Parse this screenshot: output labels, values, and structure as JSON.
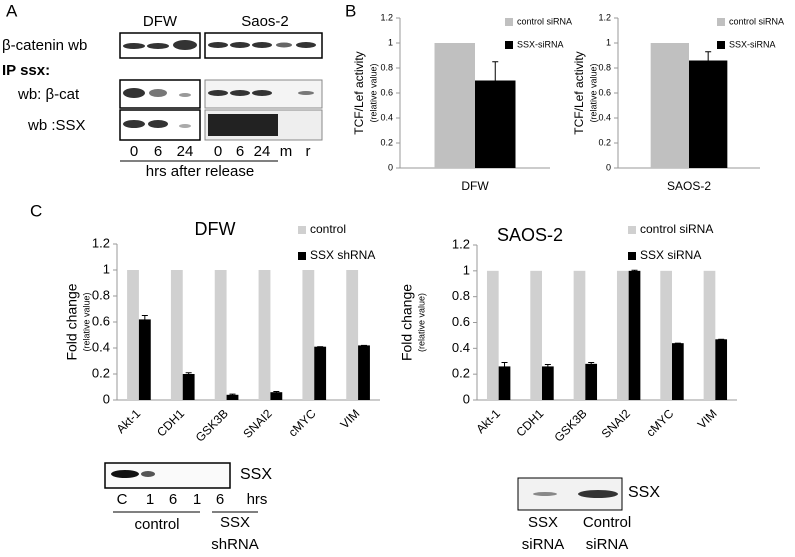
{
  "panel_labels": [
    "A",
    "B",
    "C"
  ],
  "panel_a": {
    "cell_lines": [
      "DFW",
      "Saos-2"
    ],
    "row_labels": [
      "β-catenin wb",
      "IP ssx:",
      "wb: β-cat",
      "wb :SSX"
    ],
    "lanes": [
      "0",
      "6",
      "24",
      "0",
      "6",
      "24",
      "m",
      "r"
    ],
    "time_label": "hrs after release"
  },
  "chart_data": [
    {
      "type": "bar",
      "ylabel": "TCF/Lef activity",
      "ylabel_sub": "(relative value)",
      "categories": [
        "DFW"
      ],
      "series": [
        {
          "name": "control siRNA",
          "color": "#c0c0c0",
          "values": [
            1
          ]
        },
        {
          "name": "SSX-siRNA",
          "color": "#000000",
          "values": [
            0.7
          ],
          "errors": [
            0.15
          ]
        }
      ],
      "ylim": [
        0,
        1.2
      ],
      "yticks": [
        0,
        0.2,
        0.4,
        0.6,
        0.8,
        1,
        1.2
      ]
    },
    {
      "type": "bar",
      "ylabel": "TCF/Lef activity",
      "ylabel_sub": "(relative value)",
      "categories": [
        "SAOS-2"
      ],
      "series": [
        {
          "name": "control siRNA",
          "color": "#c0c0c0",
          "values": [
            1
          ]
        },
        {
          "name": "SSX-siRNA",
          "color": "#000000",
          "values": [
            0.86
          ],
          "errors": [
            0.07
          ]
        }
      ],
      "ylim": [
        0,
        1.2
      ],
      "yticks": [
        0,
        0.2,
        0.4,
        0.6,
        0.8,
        1,
        1.2
      ]
    },
    {
      "type": "bar",
      "title": "DFW",
      "ylabel": "Fold change",
      "ylabel_sub": "(relative value)",
      "categories": [
        "Akt-1",
        "CDH1",
        "GSK3B",
        "SNAI2",
        "cMYC",
        "VIM"
      ],
      "series": [
        {
          "name": "control",
          "color": "#d0d0d0",
          "values": [
            1,
            1,
            1,
            1,
            1,
            1
          ]
        },
        {
          "name": "SSX shRNA",
          "color": "#000000",
          "values": [
            0.62,
            0.2,
            0.04,
            0.06,
            0.41,
            0.42
          ],
          "errors": [
            0.03,
            0.01,
            0.005,
            0.005,
            0,
            0
          ]
        }
      ],
      "ylim": [
        0,
        1.2
      ],
      "yticks": [
        0,
        0.2,
        0.4,
        0.6,
        0.8,
        1,
        1.2
      ]
    },
    {
      "type": "bar",
      "title": "SAOS-2",
      "ylabel": "Fold change",
      "ylabel_sub": "(relative value)",
      "categories": [
        "Akt-1",
        "CDH1",
        "GSK3B",
        "SNAI2",
        "cMYC",
        "VIM"
      ],
      "series": [
        {
          "name": "control siRNA",
          "color": "#d0d0d0",
          "values": [
            1,
            1,
            1,
            1,
            1,
            1
          ]
        },
        {
          "name": "SSX siRNA",
          "color": "#000000",
          "values": [
            0.26,
            0.26,
            0.28,
            1,
            0.44,
            0.47
          ],
          "errors": [
            0.03,
            0.015,
            0.01,
            0.005,
            0,
            0
          ]
        }
      ],
      "ylim": [
        0,
        1.2
      ],
      "yticks": [
        0,
        0.2,
        0.4,
        0.6,
        0.8,
        1,
        1.2
      ]
    }
  ],
  "blot_c_dfw": {
    "label": "SSX",
    "lanes": [
      "C",
      "1",
      "6",
      "1",
      "6"
    ],
    "unit": "hrs",
    "groups": [
      "control",
      "SSX",
      "shRNA"
    ]
  },
  "blot_c_saos": {
    "label": "SSX",
    "groups": [
      "SSX",
      "siRNA",
      "Control",
      "siRNA"
    ]
  }
}
